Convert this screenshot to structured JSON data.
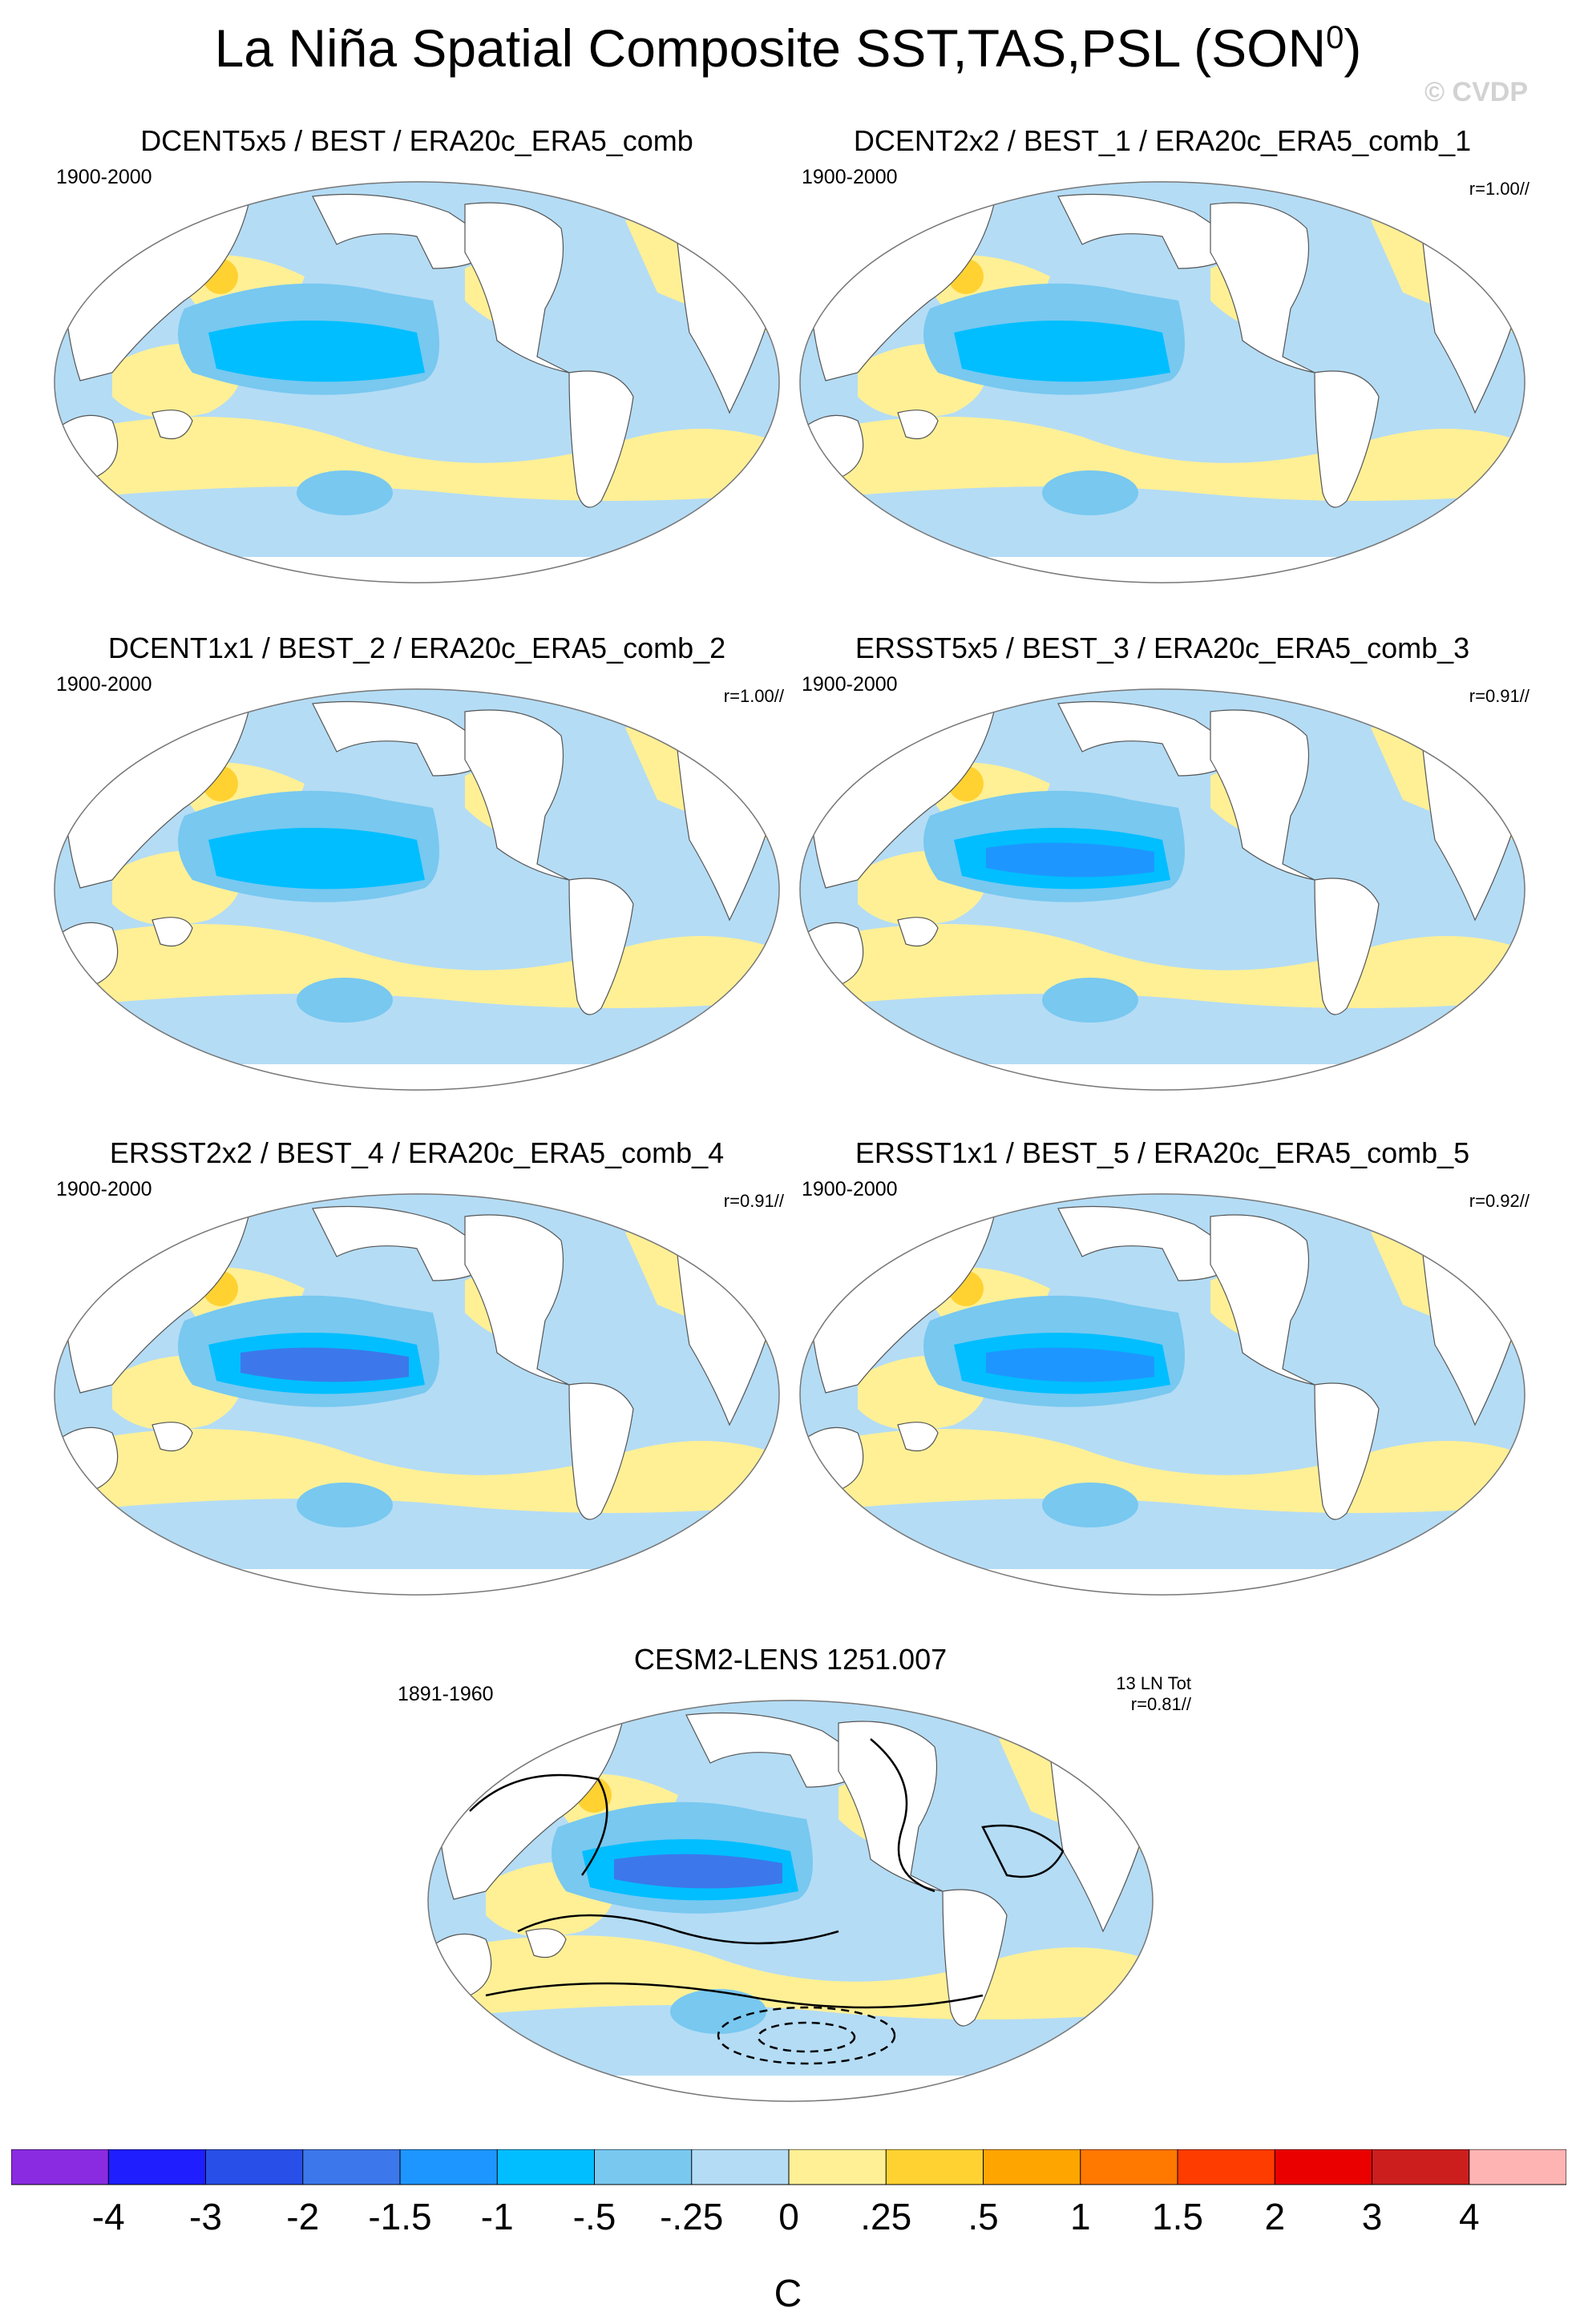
{
  "title": "La Niña Spatial Composite SST,TAS,PSL (SON",
  "title_superscript": "0",
  "title_close": ")",
  "watermark": "© CVDP",
  "chart_data": {
    "type": "heatmap",
    "variables": [
      "SST",
      "TAS",
      "PSL"
    ],
    "season": "SON0",
    "projection": "Robinson (global, Pacific-centered)",
    "units": "C",
    "colorbar": {
      "levels": [
        "-4",
        "-3",
        "-2",
        "-1.5",
        "-1",
        "-.5",
        "-.25",
        "0",
        ".25",
        ".5",
        "1",
        "1.5",
        "2",
        "3",
        "4"
      ],
      "colors": [
        "#8A2BE2",
        "#1E1EFF",
        "#2850E8",
        "#3C78EB",
        "#1E96FF",
        "#00BEFF",
        "#78C8F0",
        "#B4DCF5",
        "#FFF096",
        "#FFD232",
        "#FFA500",
        "#FF7800",
        "#FF3C00",
        "#EB0000",
        "#CD1E1E",
        "#FFB4B4"
      ]
    },
    "panels": [
      {
        "title": "DCENT5x5 / BEST / ERA20c_ERA5_comb",
        "period": "1900-2000",
        "correlation": "",
        "nino34_region_anomaly": -1.0,
        "psl_contours": false
      },
      {
        "title": "DCENT2x2 / BEST_1 / ERA20c_ERA5_comb_1",
        "period": "1900-2000",
        "correlation": "r=1.00//",
        "nino34_region_anomaly": -1.0,
        "psl_contours": false
      },
      {
        "title": "DCENT1x1 / BEST_2 / ERA20c_ERA5_comb_2",
        "period": "1900-2000",
        "correlation": "r=1.00//",
        "nino34_region_anomaly": -1.0,
        "psl_contours": false
      },
      {
        "title": "ERSST5x5 / BEST_3 / ERA20c_ERA5_comb_3",
        "period": "1900-2000",
        "correlation": "r=0.91//",
        "nino34_region_anomaly": -1.5,
        "psl_contours": false
      },
      {
        "title": "ERSST2x2 / BEST_4 / ERA20c_ERA5_comb_4",
        "period": "1900-2000",
        "correlation": "r=0.91//",
        "nino34_region_anomaly": -2.0,
        "psl_contours": false
      },
      {
        "title": "ERSST1x1 / BEST_5 / ERA20c_ERA5_comb_5",
        "period": "1900-2000",
        "correlation": "r=0.92//",
        "nino34_region_anomaly": -1.5,
        "psl_contours": false
      },
      {
        "title": "CESM2-LENS 1251.007",
        "period": "1891-1960",
        "count": "13 LN Tot",
        "correlation": "r=0.81//",
        "nino34_region_anomaly": -2.0,
        "psl_contours": true
      }
    ]
  }
}
